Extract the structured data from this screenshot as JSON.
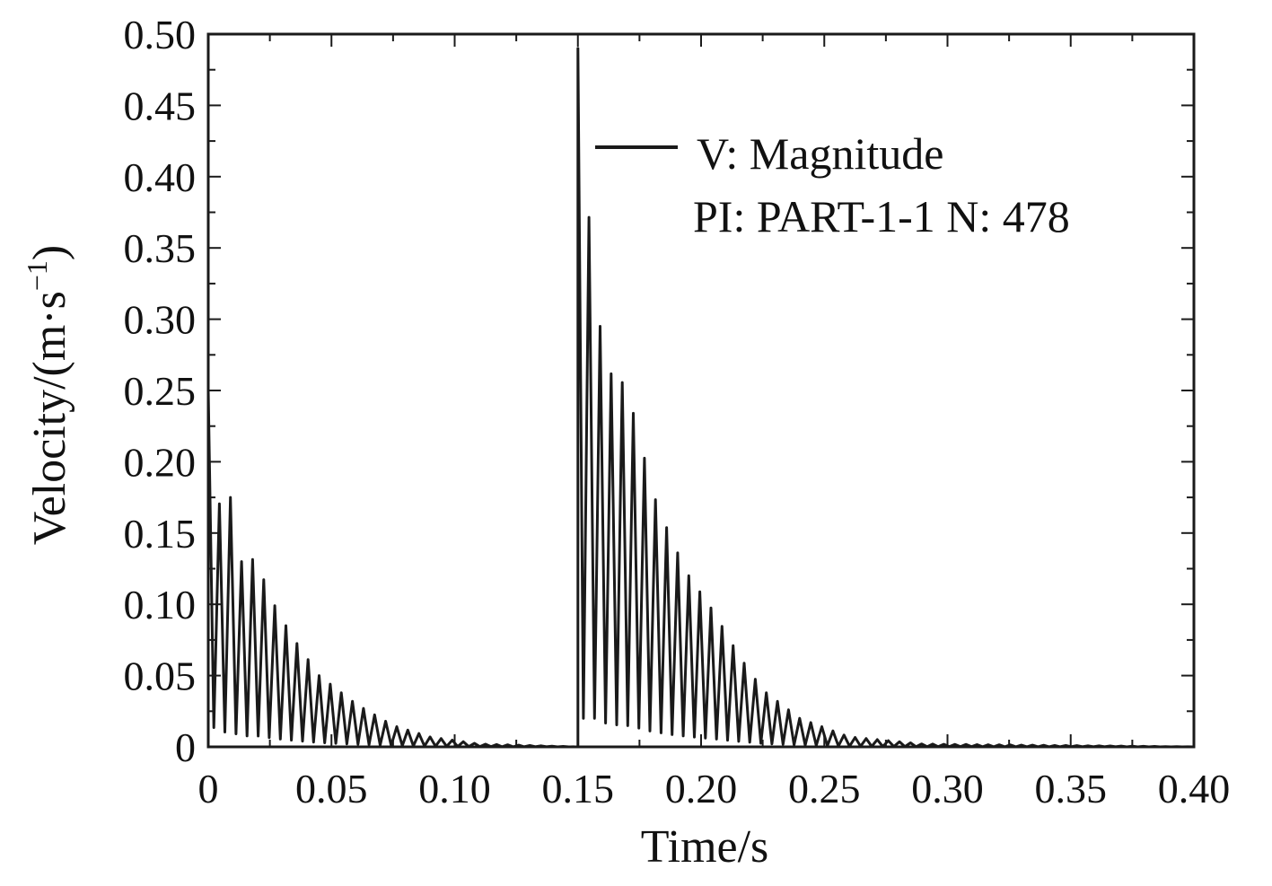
{
  "chart_data": {
    "type": "line",
    "title": "",
    "xlabel": "Time/s",
    "ylabel": "Velocity/(m·s",
    "ylabel_superscript": "−1",
    "ylabel_close": ")",
    "xlim": [
      0,
      0.4
    ],
    "ylim": [
      0,
      0.5
    ],
    "xticks": [
      0,
      0.05,
      0.1,
      0.15,
      0.2,
      0.25,
      0.3,
      0.35,
      0.4
    ],
    "xtick_labels": [
      "0",
      "0.05",
      "0.10",
      "0.15",
      "0.20",
      "0.25",
      "0.30",
      "0.35",
      "0.40"
    ],
    "yticks": [
      0,
      0.05,
      0.1,
      0.15,
      0.2,
      0.25,
      0.3,
      0.35,
      0.4,
      0.45,
      0.5
    ],
    "ytick_labels": [
      "0",
      "0.05",
      "0.10",
      "0.15",
      "0.20",
      "0.25",
      "0.30",
      "0.35",
      "0.40",
      "0.45",
      "0.50"
    ],
    "grid": false,
    "legend": {
      "placement": "top-right",
      "entries": [
        "V: Magnitude",
        "PI: PART-1-1 N: 478"
      ]
    },
    "series": [
      {
        "name": "V: Magnitude",
        "color": "#1a1a1a",
        "segments": [
          {
            "t_start": 0.0,
            "t_end": 0.15,
            "oscillation_period": 0.0045,
            "peaks": [
              [
                0.0015,
                0.25
              ],
              [
                0.004,
                0.17
              ],
              [
                0.009,
                0.175
              ],
              [
                0.014,
                0.125
              ],
              [
                0.019,
                0.133
              ],
              [
                0.023,
                0.115
              ],
              [
                0.028,
                0.095
              ],
              [
                0.035,
                0.075
              ],
              [
                0.045,
                0.05
              ],
              [
                0.06,
                0.03
              ],
              [
                0.075,
                0.015
              ],
              [
                0.09,
                0.007
              ],
              [
                0.11,
                0.002
              ],
              [
                0.15,
                0.0
              ]
            ]
          },
          {
            "t_start": 0.15,
            "t_end": 0.4,
            "oscillation_period": 0.0045,
            "peaks": [
              [
                0.1505,
                0.49
              ],
              [
                0.154,
                0.38
              ],
              [
                0.159,
                0.295
              ],
              [
                0.164,
                0.258
              ],
              [
                0.169,
                0.255
              ],
              [
                0.174,
                0.225
              ],
              [
                0.18,
                0.18
              ],
              [
                0.188,
                0.145
              ],
              [
                0.195,
                0.12
              ],
              [
                0.205,
                0.095
              ],
              [
                0.215,
                0.065
              ],
              [
                0.225,
                0.04
              ],
              [
                0.24,
                0.02
              ],
              [
                0.26,
                0.007
              ],
              [
                0.29,
                0.002
              ],
              [
                0.4,
                0.0
              ]
            ]
          }
        ]
      }
    ]
  }
}
